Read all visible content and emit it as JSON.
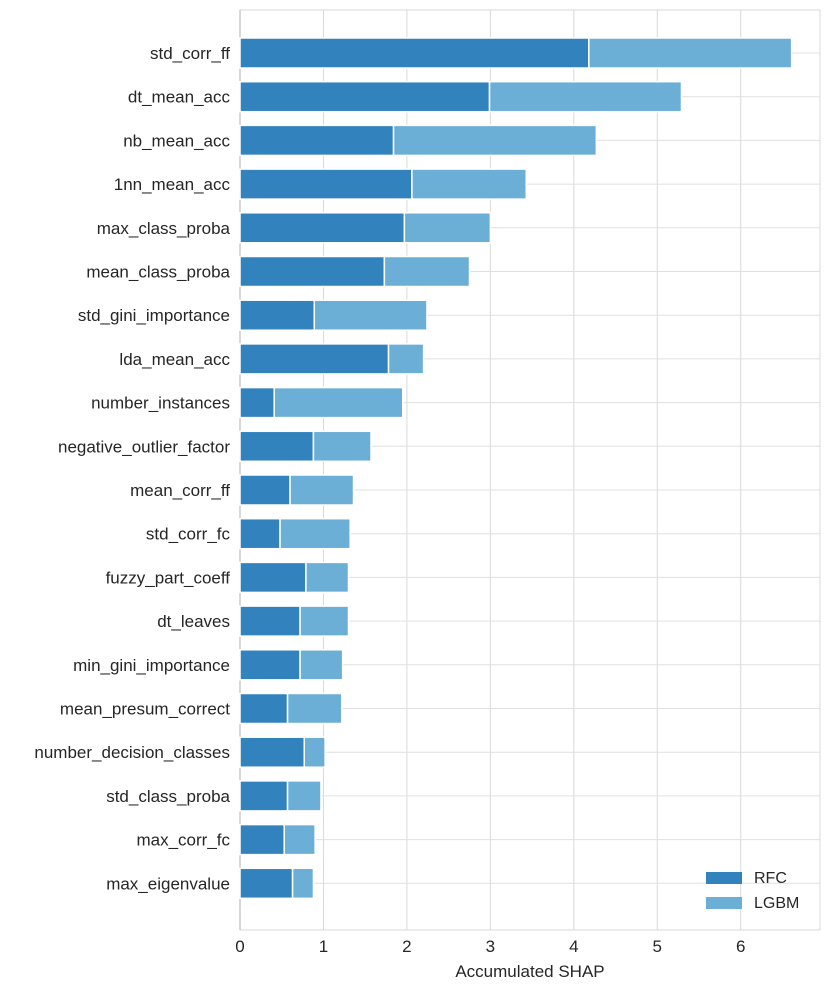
{
  "chart_data": {
    "type": "bar",
    "orientation": "horizontal",
    "stacked": true,
    "categories": [
      "std_corr_ff",
      "dt_mean_acc",
      "nb_mean_acc",
      "1nn_mean_acc",
      "max_class_proba",
      "mean_class_proba",
      "std_gini_importance",
      "lda_mean_acc",
      "number_instances",
      "negative_outlier_factor",
      "mean_corr_ff",
      "std_corr_fc",
      "fuzzy_part_coeff",
      "dt_leaves",
      "min_gini_importance",
      "mean_presum_correct",
      "number_decision_classes",
      "std_class_proba",
      "max_corr_fc",
      "max_eigenvalue"
    ],
    "series": [
      {
        "name": "RFC",
        "color": "#3182bd",
        "values": [
          4.18,
          2.99,
          1.84,
          2.06,
          1.97,
          1.73,
          0.89,
          1.78,
          0.41,
          0.88,
          0.6,
          0.48,
          0.79,
          0.72,
          0.72,
          0.57,
          0.77,
          0.57,
          0.53,
          0.63
        ]
      },
      {
        "name": "LGBM",
        "color": "#6baed6",
        "values": [
          2.43,
          2.3,
          2.43,
          1.37,
          1.03,
          1.02,
          1.35,
          0.42,
          1.54,
          0.69,
          0.76,
          0.84,
          0.51,
          0.58,
          0.51,
          0.65,
          0.25,
          0.4,
          0.37,
          0.25
        ]
      }
    ],
    "xlabel": "Accumulated SHAP",
    "ylabel": "",
    "xticks": [
      "0",
      "1",
      "2",
      "3",
      "4",
      "5",
      "6"
    ],
    "xlim": [
      0,
      6.95
    ],
    "grid": true,
    "legend_position": "lower-right"
  }
}
